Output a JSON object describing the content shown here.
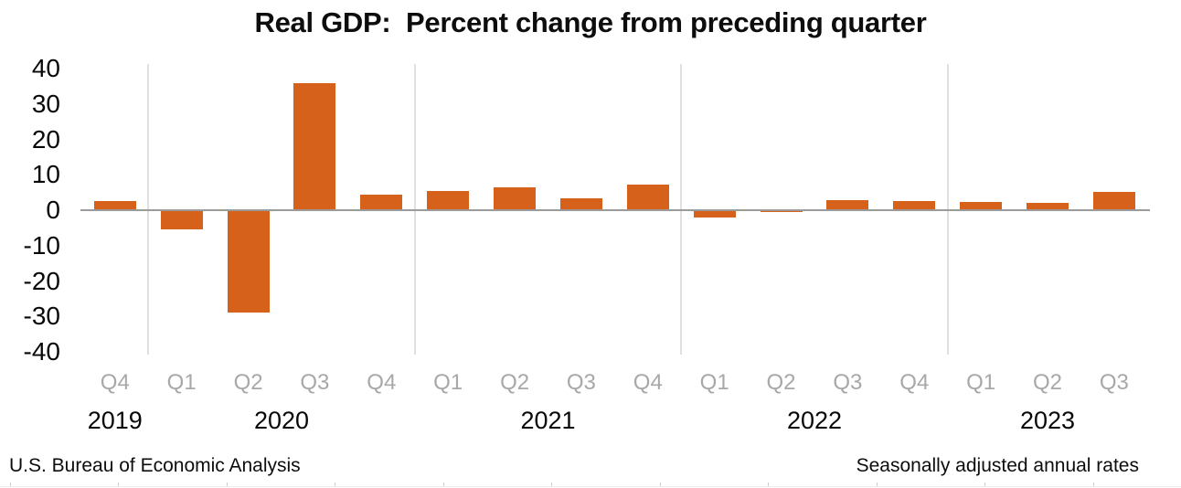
{
  "chart_data": {
    "type": "bar",
    "title": "Real GDP:  Percent change from preceding quarter",
    "categories": [
      "Q4",
      "Q1",
      "Q2",
      "Q3",
      "Q4",
      "Q1",
      "Q2",
      "Q3",
      "Q4",
      "Q1",
      "Q2",
      "Q3",
      "Q4",
      "Q1",
      "Q2",
      "Q3"
    ],
    "values": [
      2.6,
      -5.3,
      -28.0,
      34.8,
      4.2,
      5.2,
      6.2,
      3.3,
      7.0,
      -2.0,
      -0.6,
      2.7,
      2.6,
      2.2,
      2.1,
      4.9
    ],
    "year_groups": [
      {
        "year": "2019",
        "quarters": 1
      },
      {
        "year": "2020",
        "quarters": 4
      },
      {
        "year": "2021",
        "quarters": 4
      },
      {
        "year": "2022",
        "quarters": 4
      },
      {
        "year": "2023",
        "quarters": 3
      }
    ],
    "xlabel": "",
    "ylabel": "",
    "ylim": [
      -40,
      40
    ],
    "yticks": [
      40,
      30,
      20,
      10,
      0,
      -10,
      -20,
      -30,
      -40
    ],
    "legend": "none",
    "grid": "vertical year-separator lines only",
    "bar_color": "#D6611A"
  },
  "footer": {
    "source": "U.S. Bureau of Economic Analysis",
    "note": "Seasonally adjusted annual rates"
  },
  "colors": {
    "bar": "#D6611A",
    "zero_line": "#9b9b9b",
    "year_separator": "#e0e0e0",
    "quarter_label": "#a8a8a8",
    "text": "#0d0d0d"
  }
}
